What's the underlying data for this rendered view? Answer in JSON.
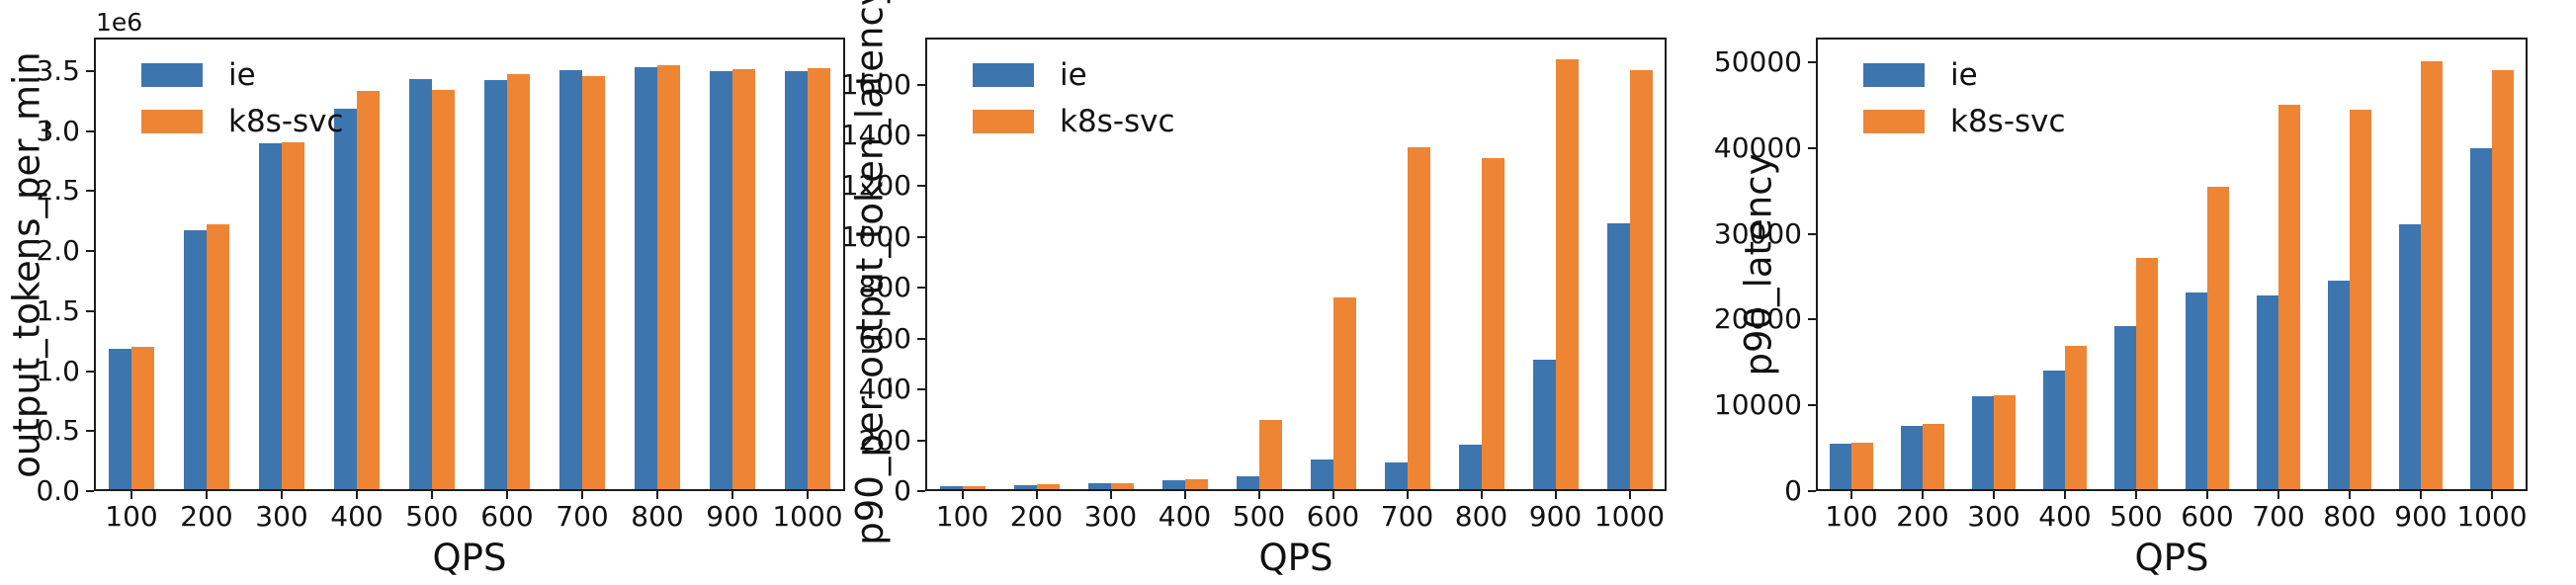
{
  "figure": {
    "background": "#ffffff",
    "text_color": "#111111",
    "series_colors": {
      "ie": "#3d76af",
      "k8s-svc": "#ee8535"
    }
  },
  "chart_data": [
    {
      "type": "bar",
      "title": "",
      "xlabel": "QPS",
      "ylabel": "output_tokens_per_min",
      "offset_text": "1e6",
      "grid": false,
      "legend_position": "upper left",
      "categories": [
        100,
        200,
        300,
        400,
        500,
        600,
        700,
        800,
        900,
        1000
      ],
      "series": [
        {
          "name": "ie",
          "color": "#3d76af",
          "values": [
            1180000,
            2180000,
            2910000,
            3200000,
            3450000,
            3440000,
            3520000,
            3550000,
            3510000,
            3510000
          ]
        },
        {
          "name": "k8s-svc",
          "color": "#ee8535",
          "values": [
            1200000,
            2230000,
            2920000,
            3350000,
            3360000,
            3490000,
            3470000,
            3560000,
            3530000,
            3540000
          ]
        }
      ],
      "ylim": [
        0,
        3780000
      ],
      "yticks": [
        0,
        500000,
        1000000,
        1500000,
        2000000,
        2500000,
        3000000,
        3500000
      ],
      "ytick_labels": [
        "0.0",
        "0.5",
        "1.0",
        "1.5",
        "2.0",
        "2.5",
        "3.0",
        "3.5"
      ]
    },
    {
      "type": "bar",
      "title": "",
      "xlabel": "QPS",
      "ylabel": "p90_per_output_token_latency",
      "offset_text": "",
      "grid": false,
      "legend_position": "upper left",
      "categories": [
        100,
        200,
        300,
        400,
        500,
        600,
        700,
        800,
        900,
        1000
      ],
      "series": [
        {
          "name": "ie",
          "color": "#3d76af",
          "values": [
            10,
            17,
            24,
            35,
            50,
            117,
            107,
            177,
            515,
            1057
          ]
        },
        {
          "name": "k8s-svc",
          "color": "#ee8535",
          "values": [
            10,
            18,
            25,
            40,
            273,
            762,
            1356,
            1313,
            1705,
            1665
          ]
        }
      ],
      "ylim": [
        0,
        1785
      ],
      "yticks": [
        0,
        200,
        400,
        600,
        800,
        1000,
        1200,
        1400,
        1600
      ],
      "ytick_labels": [
        "0",
        "200",
        "400",
        "600",
        "800",
        "1000",
        "1200",
        "1400",
        "1600"
      ]
    },
    {
      "type": "bar",
      "title": "",
      "xlabel": "QPS",
      "ylabel": "p90_latency",
      "offset_text": "",
      "grid": false,
      "legend_position": "upper left",
      "categories": [
        100,
        200,
        300,
        400,
        500,
        600,
        700,
        800,
        900,
        1000
      ],
      "series": [
        {
          "name": "ie",
          "color": "#3d76af",
          "values": [
            5300,
            7400,
            10900,
            13900,
            19200,
            23100,
            22800,
            24500,
            31200,
            40100
          ]
        },
        {
          "name": "k8s-svc",
          "color": "#ee8535",
          "values": [
            5500,
            7700,
            11100,
            16900,
            27200,
            35600,
            45200,
            44700,
            50300,
            49300
          ]
        }
      ],
      "ylim": [
        0,
        52900
      ],
      "yticks": [
        0,
        10000,
        20000,
        30000,
        40000,
        50000
      ],
      "ytick_labels": [
        "0",
        "10000",
        "20000",
        "30000",
        "40000",
        "50000"
      ]
    }
  ]
}
